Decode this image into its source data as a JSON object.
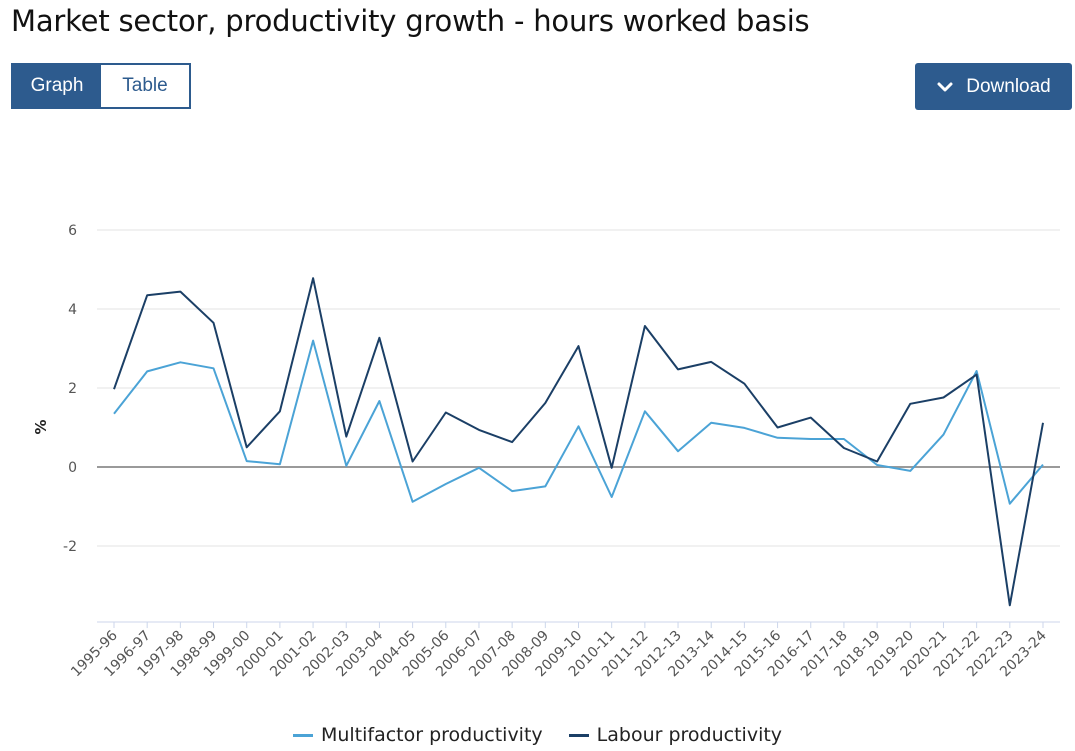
{
  "page": {
    "title": "Market sector, productivity growth - hours worked basis",
    "tabs": [
      {
        "label": "Graph",
        "active": true
      },
      {
        "label": "Table",
        "active": false
      }
    ],
    "download_label": "Download",
    "download_icon": "chevron-down-icon",
    "accent_color": "#2d5b8e"
  },
  "chart_data": {
    "type": "line",
    "title": "Market sector, productivity growth - hours worked basis",
    "ylabel": "%",
    "xlabel": "",
    "ylim": [
      -3.9,
      6.0
    ],
    "yticks": [
      6,
      4,
      2,
      0,
      -2
    ],
    "grid": true,
    "legend_position": "bottom",
    "categories": [
      "1995-96",
      "1996-97",
      "1997-98",
      "1998-99",
      "1999-00",
      "2000-01",
      "2001-02",
      "2002-03",
      "2003-04",
      "2004-05",
      "2005-06",
      "2006-07",
      "2007-08",
      "2008-09",
      "2009-10",
      "2010-11",
      "2011-12",
      "2012-13",
      "2013-14",
      "2014-15",
      "2015-16",
      "2016-17",
      "2017-18",
      "2018-19",
      "2019-20",
      "2020-21",
      "2021-22",
      "2022-23",
      "2023-24"
    ],
    "series": [
      {
        "name": "Multifactor productivity",
        "color": "#4ba3d6",
        "values": [
          1.35,
          2.42,
          2.65,
          2.5,
          0.15,
          0.07,
          3.2,
          0.03,
          1.67,
          -0.88,
          -0.43,
          -0.02,
          -0.61,
          -0.49,
          1.03,
          -0.76,
          1.41,
          0.4,
          1.12,
          0.99,
          0.74,
          0.71,
          0.71,
          0.05,
          -0.1,
          0.82,
          2.43,
          -0.93,
          0.06
        ]
      },
      {
        "name": "Labour productivity",
        "color": "#1b3f66",
        "values": [
          1.97,
          4.35,
          4.44,
          3.65,
          0.5,
          1.41,
          4.78,
          0.77,
          3.27,
          0.14,
          1.38,
          0.94,
          0.63,
          1.62,
          3.06,
          -0.02,
          3.57,
          2.47,
          2.66,
          2.11,
          1.0,
          1.25,
          0.48,
          0.14,
          1.6,
          1.76,
          2.34,
          -3.5,
          1.12
        ]
      }
    ]
  }
}
